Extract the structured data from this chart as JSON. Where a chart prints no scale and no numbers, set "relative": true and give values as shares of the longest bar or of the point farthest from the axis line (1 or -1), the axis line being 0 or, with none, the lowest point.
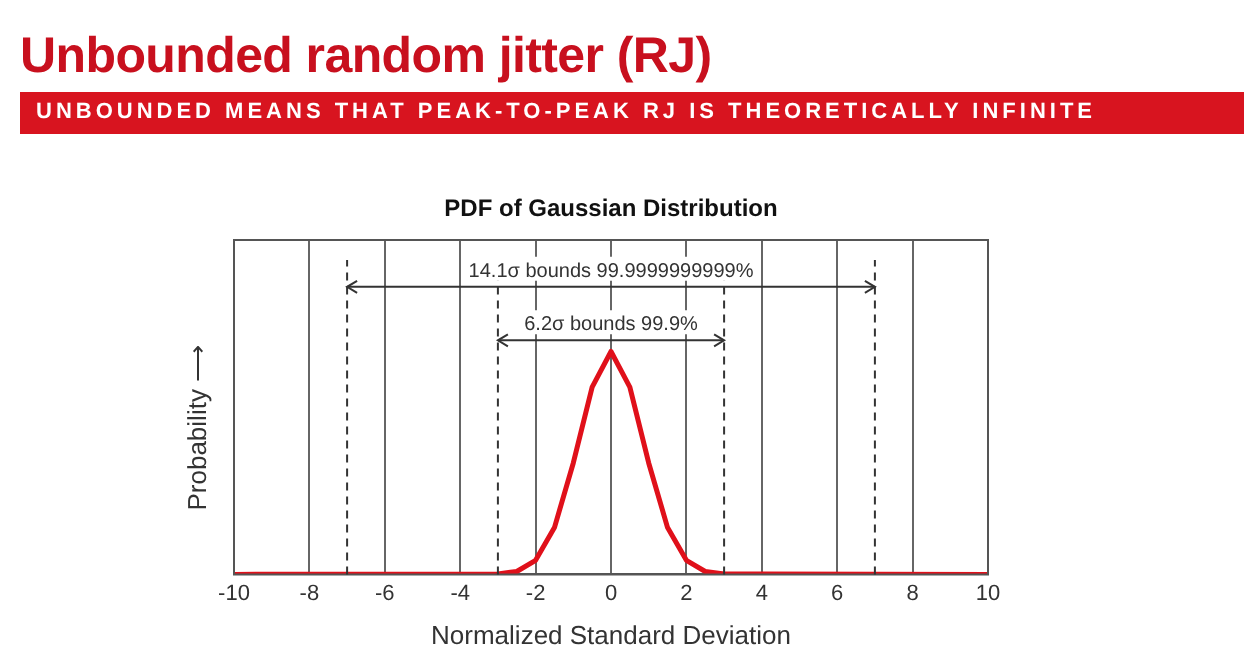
{
  "chart_data": {
    "type": "line",
    "title": "Unbounded random jitter (RJ)",
    "subtitle": "UNBOUNDED MEANS THAT PEAK-TO-PEAK RJ IS THEORETICALLY INFINITE",
    "xlabel": "Normalized Standard Deviation",
    "ylabel": "Probability ⟶",
    "annotations": [
      "PDF of Gaussian Distribution",
      "14.1σ bounds 99.9999999999%",
      "6.2σ bounds 99.9%"
    ],
    "relative": true,
    "x": [
      -10,
      -3,
      -2.5,
      -2,
      -1.5,
      -1,
      -0.5,
      0,
      0.5,
      1,
      1.5,
      2,
      2.5,
      3,
      10
    ],
    "series": [
      {
        "color": "#e0101a",
        "values": [
          0,
          0.002,
          0.013,
          0.063,
          0.21,
          0.5,
          0.84,
          1,
          0.84,
          0.5,
          0.21,
          0.063,
          0.013,
          0.002,
          0
        ]
      }
    ],
    "xlim": [
      -10,
      10
    ],
    "xticks": [
      -10,
      -8,
      -6,
      -4,
      -2,
      0,
      2,
      4,
      6,
      8,
      10
    ],
    "ref_lines": [
      {
        "axis": "x",
        "value": -7,
        "line_style": "dashed"
      },
      {
        "axis": "x",
        "value": -3,
        "line_style": "dashed"
      },
      {
        "axis": "x",
        "value": 3,
        "line_style": "dashed"
      },
      {
        "axis": "x",
        "value": 7,
        "line_style": "dashed"
      }
    ],
    "grid": "x",
    "legend": false,
    "marker": "none",
    "line_style": "solid"
  }
}
